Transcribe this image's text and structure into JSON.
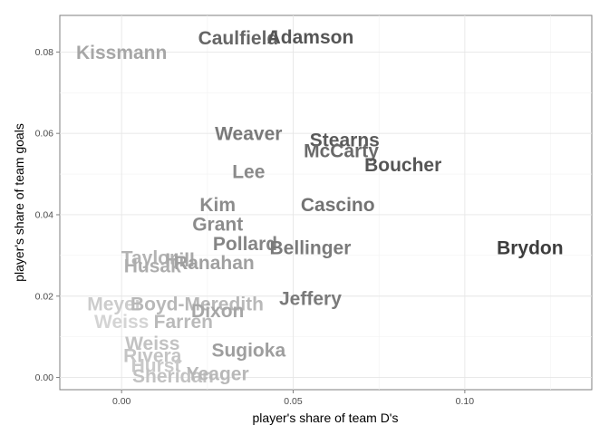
{
  "chart_data": {
    "type": "scatter",
    "xlabel": "player's share of team D's",
    "ylabel": "player's share of team goals",
    "xlim": [
      -0.018,
      0.137
    ],
    "ylim": [
      -0.003,
      0.089
    ],
    "x_ticks": [
      0.0,
      0.05,
      0.1
    ],
    "x_tick_labels": [
      "0.00",
      "0.05",
      "0.10"
    ],
    "y_ticks": [
      0.0,
      0.02,
      0.04,
      0.06,
      0.08
    ],
    "y_tick_labels": [
      "0.00",
      "0.02",
      "0.04",
      "0.06",
      "0.08"
    ],
    "grid": true,
    "marker": "text-labels",
    "color_encoding": "label darkness increases with value (light gray to dark gray)",
    "points": [
      {
        "label": "Kissmann",
        "x": 0.0,
        "y": 0.08,
        "color": "#a6a6a6"
      },
      {
        "label": "Caulfield",
        "x": 0.034,
        "y": 0.0835,
        "color": "#666666"
      },
      {
        "label": "Adamson",
        "x": 0.055,
        "y": 0.0838,
        "color": "#555555"
      },
      {
        "label": "Weaver",
        "x": 0.037,
        "y": 0.06,
        "color": "#7a7a7a"
      },
      {
        "label": "Stearns",
        "x": 0.065,
        "y": 0.0585,
        "color": "#5a5a5a"
      },
      {
        "label": "McCarty",
        "x": 0.064,
        "y": 0.0558,
        "color": "#6a6a6a"
      },
      {
        "label": "Boucher",
        "x": 0.082,
        "y": 0.0524,
        "color": "#555555"
      },
      {
        "label": "Lee",
        "x": 0.037,
        "y": 0.0507,
        "color": "#8a8a8a"
      },
      {
        "label": "Kim",
        "x": 0.028,
        "y": 0.0425,
        "color": "#8c8c8c"
      },
      {
        "label": "Cascino",
        "x": 0.063,
        "y": 0.0425,
        "color": "#737373"
      },
      {
        "label": "Grant",
        "x": 0.028,
        "y": 0.0378,
        "color": "#8c8c8c"
      },
      {
        "label": "Pollard",
        "x": 0.036,
        "y": 0.033,
        "color": "#858585"
      },
      {
        "label": "Bellinger",
        "x": 0.055,
        "y": 0.032,
        "color": "#7a7a7a"
      },
      {
        "label": "Brydon",
        "x": 0.119,
        "y": 0.032,
        "color": "#3d3d3d"
      },
      {
        "label": "Taylor",
        "x": 0.008,
        "y": 0.0295,
        "color": "#b3b3b3"
      },
      {
        "label": "Hill",
        "x": 0.017,
        "y": 0.029,
        "color": "#a8a8a8"
      },
      {
        "label": "Husak",
        "x": 0.009,
        "y": 0.0275,
        "color": "#adadad"
      },
      {
        "label": "Ranahan",
        "x": 0.027,
        "y": 0.0283,
        "color": "#a0a0a0"
      },
      {
        "label": "Jeffery",
        "x": 0.055,
        "y": 0.0195,
        "color": "#7a7a7a"
      },
      {
        "label": "Meyer",
        "x": -0.002,
        "y": 0.0182,
        "color": "#cccccc"
      },
      {
        "label": "Boyd-Meredith",
        "x": 0.022,
        "y": 0.0182,
        "color": "#b8b8b8"
      },
      {
        "label": "Dixon",
        "x": 0.028,
        "y": 0.0165,
        "color": "#a6a6a6"
      },
      {
        "label": "Weiss",
        "x": 0.0,
        "y": 0.0138,
        "color": "#d4d4d4"
      },
      {
        "label": "Farren",
        "x": 0.018,
        "y": 0.0138,
        "color": "#bababa"
      },
      {
        "label": "Weiss",
        "x": 0.009,
        "y": 0.0085,
        "color": "#c2c2c2"
      },
      {
        "label": "Sugioka",
        "x": 0.037,
        "y": 0.0068,
        "color": "#9e9e9e"
      },
      {
        "label": "Rivera",
        "x": 0.009,
        "y": 0.0055,
        "color": "#c4c4c4"
      },
      {
        "label": "Hurst",
        "x": 0.01,
        "y": 0.003,
        "color": "#c9c9c9"
      },
      {
        "label": "Sheridan",
        "x": 0.015,
        "y": 0.0005,
        "color": "#c2c2c2"
      },
      {
        "label": "Yeager",
        "x": 0.028,
        "y": 0.001,
        "color": "#b8b8b8"
      }
    ]
  }
}
